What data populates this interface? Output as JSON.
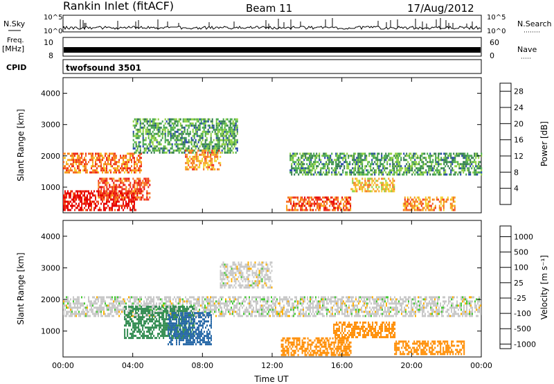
{
  "header": {
    "station": "Rankin Inlet (fitACF)",
    "beam": "Beam 11",
    "date": "17/Aug/2012"
  },
  "panels": {
    "nsky_label": "N.Sky",
    "nsky_ticks": [
      "10^5",
      "10^0"
    ],
    "nsearch_label": "N.Search",
    "freq_label": "Freq.",
    "freq_unit": "[MHz]",
    "freq_ticks": [
      "10",
      "8"
    ],
    "nave_ticks": [
      "60",
      "0"
    ],
    "nave_label": "Nave",
    "cpid_label": "CPID",
    "cpid_value": "twofsound 3501"
  },
  "colors": {
    "power_scale": [
      "#0018ff",
      "#1d3fa8",
      "#2f7a4a",
      "#43a84a",
      "#8ccf3e",
      "#f2d12a",
      "#f7a21f",
      "#f66a1e",
      "#ee2a1a",
      "#e60000"
    ],
    "velocity_scale": [
      "#ff0000",
      "#ff5a00",
      "#ff8c00",
      "#ffb000",
      "#c8c8c8",
      "#c8c8c8",
      "#44cc33",
      "#2f8a4f",
      "#2a6aa8",
      "#2036b8"
    ]
  },
  "chart_data": [
    {
      "type": "heatmap",
      "title": "",
      "xlabel": "",
      "ylabel": "Slant Range [km]",
      "x_ticks": [
        "00:00",
        "04:00",
        "08:00",
        "12:00",
        "16:00",
        "20:00",
        "00:00"
      ],
      "xlim_hours": [
        0,
        24
      ],
      "ylim_km": [
        180,
        4500
      ],
      "y_ticks": [
        1000,
        2000,
        3000,
        4000
      ],
      "colorbar": {
        "label": "Power [dB]",
        "ticks": [
          4,
          8,
          12,
          16,
          20,
          24,
          28
        ],
        "range": [
          0,
          30
        ]
      },
      "regions": [
        {
          "start_h": 0.0,
          "end_h": 4.2,
          "min_km": 250,
          "max_km": 900,
          "value": 28
        },
        {
          "start_h": 0.0,
          "end_h": 4.5,
          "min_km": 1500,
          "max_km": 2100,
          "value": 22
        },
        {
          "start_h": 2.0,
          "end_h": 5.0,
          "min_km": 600,
          "max_km": 1300,
          "value": 24
        },
        {
          "start_h": 4.0,
          "end_h": 10.0,
          "min_km": 2100,
          "max_km": 3200,
          "value": 10
        },
        {
          "start_h": 7.0,
          "end_h": 9.0,
          "min_km": 1600,
          "max_km": 2200,
          "value": 20
        },
        {
          "start_h": 12.8,
          "end_h": 16.5,
          "min_km": 250,
          "max_km": 700,
          "value": 24
        },
        {
          "start_h": 13.0,
          "end_h": 24.0,
          "min_km": 1400,
          "max_km": 2100,
          "value": 10
        },
        {
          "start_h": 16.5,
          "end_h": 19.0,
          "min_km": 900,
          "max_km": 1300,
          "value": 18
        },
        {
          "start_h": 19.5,
          "end_h": 22.5,
          "min_km": 300,
          "max_km": 700,
          "value": 20
        }
      ]
    },
    {
      "type": "heatmap",
      "title": "",
      "xlabel": "Time UT",
      "ylabel": "Slant Range [km]",
      "x_ticks": [
        "00:00",
        "04:00",
        "08:00",
        "12:00",
        "16:00",
        "20:00",
        "00:00"
      ],
      "xlim_hours": [
        0,
        24
      ],
      "ylim_km": [
        180,
        4500
      ],
      "y_ticks": [
        1000,
        2000,
        3000,
        4000
      ],
      "colorbar": {
        "label": "Velocity [m s⁻¹]",
        "ticks": [
          "1000",
          "500",
          "100",
          "25",
          "-25",
          "-100",
          "-500",
          "-1000"
        ]
      },
      "regions": [
        {
          "start_h": 0.0,
          "end_h": 24.0,
          "min_km": 1500,
          "max_km": 2100,
          "value": 0
        },
        {
          "start_h": 3.5,
          "end_h": 7.5,
          "min_km": 800,
          "max_km": 1800,
          "value": 150
        },
        {
          "start_h": 6.0,
          "end_h": 8.5,
          "min_km": 600,
          "max_km": 1600,
          "value": 600
        },
        {
          "start_h": 9.0,
          "end_h": 12.0,
          "min_km": 2400,
          "max_km": 3200,
          "value": 0
        },
        {
          "start_h": 12.5,
          "end_h": 16.5,
          "min_km": 250,
          "max_km": 800,
          "value": -300
        },
        {
          "start_h": 15.5,
          "end_h": 19.0,
          "min_km": 800,
          "max_km": 1300,
          "value": -300
        },
        {
          "start_h": 19.0,
          "end_h": 23.0,
          "min_km": 300,
          "max_km": 700,
          "value": -300
        }
      ]
    }
  ]
}
